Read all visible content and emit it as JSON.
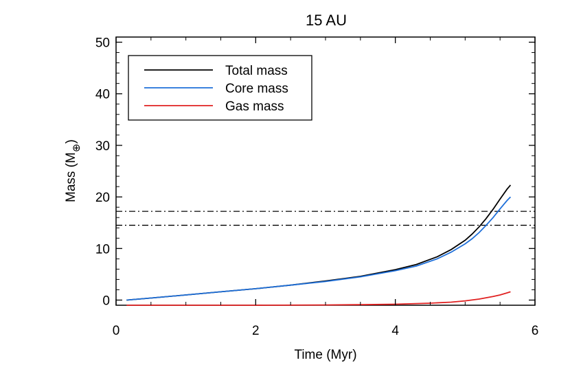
{
  "chart_data": {
    "type": "line",
    "title": "15 AU",
    "xlabel": "Time (Myr)",
    "ylabel": "Mass (M",
    "ylabel_subscript": "⊕",
    "ylabel_close": ")",
    "xlim": [
      0,
      6
    ],
    "ylim": [
      -1,
      51
    ],
    "xticks": [
      0,
      2,
      4,
      6
    ],
    "xtick_labels": [
      "0",
      "2",
      "4",
      "6"
    ],
    "yticks": [
      0,
      10,
      20,
      30,
      40,
      50
    ],
    "ytick_labels": [
      "0",
      "10",
      "20",
      "30",
      "40",
      "50"
    ],
    "grid": false,
    "legend_position": "top-left",
    "series": [
      {
        "name": "Total mass",
        "color": "#000000",
        "x": [
          0.15,
          0.5,
          1.0,
          1.5,
          2.0,
          2.5,
          3.0,
          3.5,
          4.0,
          4.3,
          4.6,
          4.8,
          5.0,
          5.1,
          5.2,
          5.3,
          5.4,
          5.5,
          5.6,
          5.65
        ],
        "y": [
          0.0,
          0.4,
          1.0,
          1.6,
          2.2,
          2.9,
          3.7,
          4.6,
          5.9,
          6.9,
          8.4,
          9.8,
          11.6,
          12.8,
          14.2,
          15.8,
          17.6,
          19.6,
          21.5,
          22.3
        ]
      },
      {
        "name": "Core mass",
        "color": "#1e6fd9",
        "x": [
          0.15,
          0.5,
          1.0,
          1.5,
          2.0,
          2.5,
          3.0,
          3.5,
          4.0,
          4.3,
          4.6,
          4.8,
          5.0,
          5.1,
          5.2,
          5.3,
          5.4,
          5.5,
          5.6,
          5.65
        ],
        "y": [
          0.0,
          0.4,
          1.0,
          1.6,
          2.2,
          2.9,
          3.6,
          4.5,
          5.7,
          6.6,
          8.0,
          9.3,
          10.9,
          11.9,
          13.1,
          14.5,
          16.0,
          17.7,
          19.3,
          20.0
        ]
      },
      {
        "name": "Gas mass",
        "color": "#e02020",
        "x": [
          0.15,
          1.0,
          2.0,
          3.0,
          3.5,
          4.0,
          4.5,
          4.8,
          5.0,
          5.2,
          5.4,
          5.5,
          5.6,
          5.65
        ],
        "y": [
          -1.0,
          -1.0,
          -1.0,
          -0.95,
          -0.9,
          -0.8,
          -0.6,
          -0.4,
          -0.15,
          0.2,
          0.7,
          1.0,
          1.4,
          1.6
        ]
      }
    ],
    "reference_lines": [
      {
        "y": 17.2,
        "style": "dash-dot",
        "color": "#000000"
      },
      {
        "y": 14.5,
        "style": "dash-dot",
        "color": "#000000"
      }
    ]
  }
}
